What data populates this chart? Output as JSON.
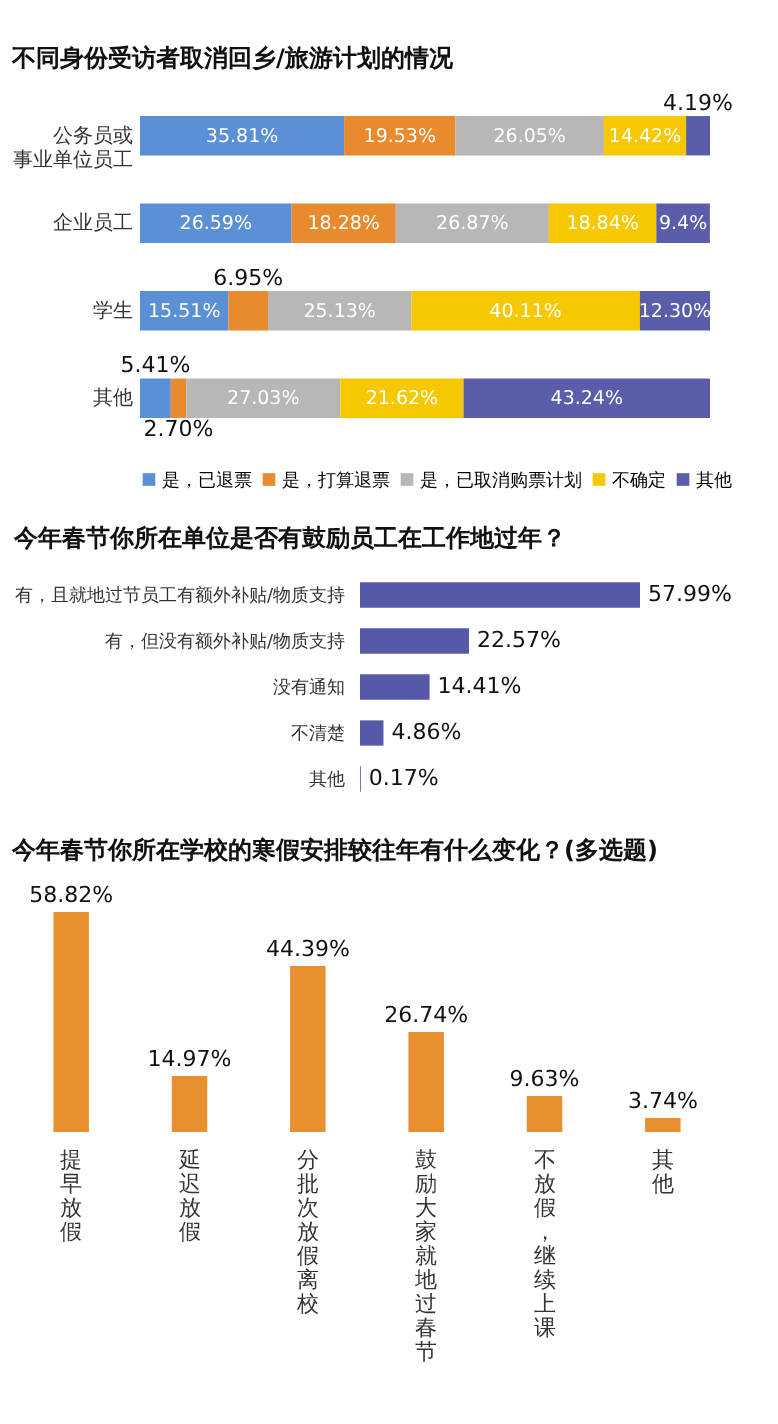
{
  "chart_data": [
    {
      "type": "bar",
      "title": "不同身份受访者取消回乡/旅游计划的情况",
      "orientation": "horizontal",
      "stacked": true,
      "legend": "bottom",
      "categories": [
        "公务员或事业单位员工",
        "企业员工",
        "学生",
        "其他"
      ],
      "series": [
        {
          "name": "是，已退票",
          "color": "#5b8fd6",
          "values": [
            35.81,
            26.59,
            15.51,
            5.41
          ],
          "value_labels": [
            "35.81%",
            "26.59%",
            "15.51%",
            "5.41%"
          ]
        },
        {
          "name": "是，打算退票",
          "color": "#e88a2e",
          "values": [
            19.53,
            18.28,
            6.95,
            2.7
          ],
          "value_labels": [
            "19.53%",
            "18.28%",
            "6.95%",
            "2.70%"
          ]
        },
        {
          "name": "是，已取消购票计划",
          "color": "#b9b6b6",
          "values": [
            26.05,
            26.87,
            25.13,
            27.03
          ],
          "value_labels": [
            "26.05%",
            "26.87%",
            "25.13%",
            "27.03%"
          ]
        },
        {
          "name": "不确定",
          "color": "#f5c800",
          "values": [
            14.42,
            18.84,
            40.11,
            21.62
          ],
          "value_labels": [
            "14.42%",
            "18.84%",
            "40.11%",
            "21.62%"
          ]
        },
        {
          "name": "其他",
          "color": "#5a5eaa",
          "values": [
            4.19,
            9.4,
            12.3,
            43.24
          ],
          "value_labels": [
            "4.19%",
            "9.4%",
            "12.30%",
            "43.24%"
          ]
        }
      ]
    },
    {
      "type": "bar",
      "title": "今年春节你所在单位是否有鼓励员工在工作地过年？",
      "orientation": "horizontal",
      "categories": [
        "有，且就地过节员工有额外补贴/物质支持",
        "有，但没有额外补贴/物质支持",
        "没有通知",
        "不清楚",
        "其他"
      ],
      "values": [
        57.99,
        22.57,
        14.41,
        4.86,
        0.17
      ],
      "value_labels": [
        "57.99%",
        "22.57%",
        "14.41%",
        "4.86%",
        "0.17%"
      ],
      "color": "#5559a8"
    },
    {
      "type": "bar",
      "title": "今年春节你所在学校的寒假安排较往年有什么变化？(多选题)",
      "categories": [
        "提早放假",
        "延迟放假",
        "分批次放假离校",
        "鼓励大家就地过春节",
        "不放假，继续上课",
        "其他"
      ],
      "values": [
        58.82,
        14.97,
        44.39,
        26.74,
        9.63,
        3.74
      ],
      "value_labels": [
        "58.82%",
        "14.97%",
        "44.39%",
        "26.74%",
        "9.63%",
        "3.74%"
      ],
      "color": "#e8902f"
    }
  ]
}
